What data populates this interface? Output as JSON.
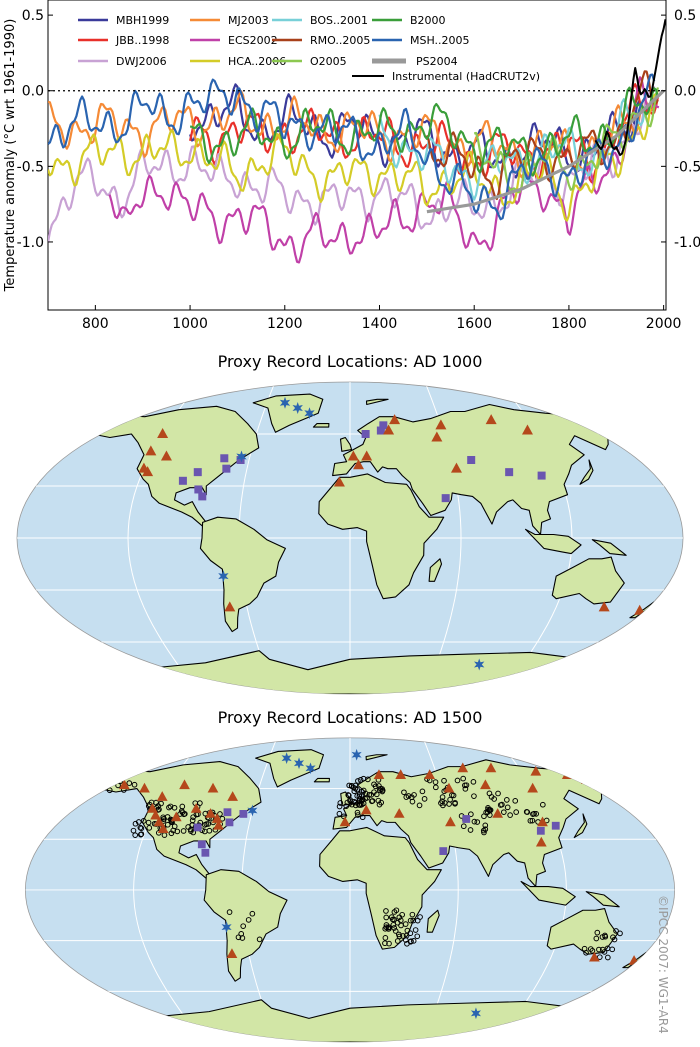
{
  "chart_data": {
    "type": "line",
    "ylabel": "Temperature anomaly (°C wrt 1961-1990)",
    "xlim": [
      700,
      2005
    ],
    "ylim": [
      -1.45,
      0.6
    ],
    "xticks": [
      "800",
      "1000",
      "1200",
      "1400",
      "1600",
      "1800",
      "2000"
    ],
    "yticks_left": [
      "0.5",
      "0.0",
      "-0.5",
      "-1.0"
    ],
    "yticks_right": [
      "0.5",
      "0.0",
      "-0.5",
      "-1.0"
    ],
    "zero_line": "dotted",
    "series": [
      {
        "name": "MBH1999",
        "color": "#3a3a9a",
        "start": 1000,
        "end": 1980,
        "x": [
          1000,
          1050,
          1100,
          1150,
          1200,
          1250,
          1300,
          1350,
          1400,
          1450,
          1500,
          1550,
          1600,
          1650,
          1700,
          1750,
          1800,
          1850,
          1900,
          1950,
          1980
        ],
        "y": [
          -0.15,
          -0.2,
          -0.12,
          -0.25,
          -0.22,
          -0.2,
          -0.3,
          -0.25,
          -0.3,
          -0.35,
          -0.3,
          -0.4,
          -0.42,
          -0.45,
          -0.4,
          -0.35,
          -0.38,
          -0.42,
          -0.3,
          -0.1,
          -0.05
        ]
      },
      {
        "name": "JBB..1998",
        "color": "#e8302a",
        "start": 1000,
        "end": 1991,
        "x": [
          1000,
          1050,
          1100,
          1150,
          1200,
          1250,
          1300,
          1350,
          1400,
          1450,
          1500,
          1550,
          1600,
          1650,
          1700,
          1750,
          1800,
          1850,
          1900,
          1950,
          1991
        ],
        "y": [
          -0.3,
          -0.3,
          -0.25,
          -0.3,
          -0.25,
          -0.3,
          -0.28,
          -0.3,
          -0.32,
          -0.35,
          -0.35,
          -0.4,
          -0.45,
          -0.4,
          -0.42,
          -0.4,
          -0.38,
          -0.45,
          -0.3,
          -0.1,
          -0.05
        ]
      },
      {
        "name": "DWJ2006",
        "color": "#c8a2d4",
        "start": 700,
        "end": 1980,
        "x": [
          700,
          750,
          800,
          850,
          900,
          950,
          1000,
          1050,
          1100,
          1150,
          1200,
          1250,
          1300,
          1350,
          1400,
          1450,
          1500,
          1550,
          1600,
          1650,
          1700,
          1750,
          1800,
          1850,
          1900,
          1950,
          1980
        ],
        "y": [
          -0.9,
          -0.65,
          -0.6,
          -0.7,
          -0.55,
          -0.5,
          -0.45,
          -0.6,
          -0.55,
          -0.65,
          -0.7,
          -0.7,
          -0.75,
          -0.7,
          -0.65,
          -0.75,
          -0.8,
          -0.75,
          -0.8,
          -0.7,
          -0.6,
          -0.55,
          -0.6,
          -0.5,
          -0.4,
          -0.15,
          -0.1
        ]
      },
      {
        "name": "MJ2003",
        "color": "#f58a36",
        "start": 700,
        "end": 1980,
        "x": [
          700,
          800,
          900,
          1000,
          1100,
          1200,
          1300,
          1400,
          1500,
          1600,
          1700,
          1800,
          1850,
          1900,
          1950,
          1980
        ],
        "y": [
          -0.25,
          -0.22,
          -0.25,
          -0.2,
          -0.18,
          -0.22,
          -0.25,
          -0.28,
          -0.3,
          -0.35,
          -0.4,
          -0.4,
          -0.38,
          -0.3,
          -0.12,
          -0.05
        ]
      },
      {
        "name": "ECS2002",
        "color": "#c040a8",
        "start": 830,
        "end": 1990,
        "x": [
          830,
          860,
          900,
          950,
          1000,
          1050,
          1100,
          1150,
          1200,
          1250,
          1300,
          1350,
          1400,
          1450,
          1500,
          1550,
          1600,
          1650,
          1700,
          1750,
          1800,
          1850,
          1900,
          1950,
          1990
        ],
        "y": [
          -0.6,
          -0.95,
          -0.7,
          -0.6,
          -0.8,
          -0.85,
          -0.8,
          -0.9,
          -1.0,
          -0.95,
          -1.02,
          -0.9,
          -0.95,
          -0.85,
          -0.7,
          -0.8,
          -1.0,
          -0.85,
          -0.65,
          -0.6,
          -0.9,
          -0.55,
          -0.45,
          -0.1,
          -0.05
        ]
      },
      {
        "name": "HCA..2006",
        "color": "#d4cc28",
        "start": 700,
        "end": 1990,
        "x": [
          700,
          750,
          800,
          850,
          900,
          950,
          1000,
          1050,
          1100,
          1150,
          1200,
          1250,
          1300,
          1350,
          1400,
          1450,
          1500,
          1550,
          1600,
          1650,
          1700,
          1750,
          1800,
          1850,
          1900,
          1950,
          1990
        ],
        "y": [
          -0.4,
          -0.5,
          -0.45,
          -0.35,
          -0.45,
          -0.4,
          -0.35,
          -0.5,
          -0.55,
          -0.45,
          -0.45,
          -0.5,
          -0.6,
          -0.55,
          -0.5,
          -0.6,
          -0.65,
          -0.55,
          -0.6,
          -0.65,
          -0.6,
          -0.55,
          -0.7,
          -0.6,
          -0.45,
          -0.2,
          -0.1
        ]
      },
      {
        "name": "BOS..2001",
        "color": "#78d0d8",
        "start": 1400,
        "end": 1960,
        "x": [
          1400,
          1450,
          1500,
          1550,
          1600,
          1650,
          1700,
          1750,
          1800,
          1850,
          1900,
          1960
        ],
        "y": [
          -0.3,
          -0.35,
          -0.45,
          -0.5,
          -0.55,
          -0.5,
          -0.45,
          -0.4,
          -0.4,
          -0.45,
          -0.3,
          -0.1
        ]
      },
      {
        "name": "RMO..2005",
        "color": "#a8401a",
        "start": 1500,
        "end": 1990,
        "x": [
          1500,
          1550,
          1600,
          1650,
          1700,
          1750,
          1800,
          1850,
          1900,
          1950,
          1990
        ],
        "y": [
          -0.35,
          -0.45,
          -0.5,
          -0.55,
          -0.45,
          -0.4,
          -0.45,
          -0.4,
          -0.3,
          -0.05,
          -0.05
        ]
      },
      {
        "name": "O2005",
        "color": "#8cc850",
        "start": 1600,
        "end": 1990,
        "x": [
          1600,
          1650,
          1700,
          1750,
          1800,
          1850,
          1900,
          1950,
          1990
        ],
        "y": [
          -0.45,
          -0.5,
          -0.55,
          -0.45,
          -0.5,
          -0.45,
          -0.35,
          -0.1,
          -0.05
        ]
      },
      {
        "name": "B2000",
        "color": "#3a9e3a",
        "start": 1000,
        "end": 1990,
        "x": [
          1000,
          1100,
          1200,
          1300,
          1400,
          1500,
          1600,
          1700,
          1800,
          1850,
          1900,
          1950,
          1990
        ],
        "y": [
          -0.35,
          -0.3,
          -0.3,
          -0.25,
          -0.3,
          -0.2,
          -0.35,
          -0.4,
          -0.35,
          -0.3,
          -0.25,
          -0.1,
          -0.05
        ]
      },
      {
        "name": "MSH..2005",
        "color": "#2a64b0",
        "start": 700,
        "end": 1980,
        "x": [
          700,
          750,
          800,
          850,
          900,
          950,
          1000,
          1050,
          1100,
          1150,
          1200,
          1250,
          1300,
          1350,
          1400,
          1450,
          1500,
          1550,
          1600,
          1650,
          1700,
          1750,
          1800,
          1850,
          1900,
          1950,
          1980
        ],
        "y": [
          -0.3,
          -0.2,
          -0.25,
          -0.2,
          -0.1,
          -0.2,
          -0.05,
          -0.1,
          0.0,
          -0.15,
          -0.25,
          -0.2,
          -0.3,
          -0.3,
          -0.35,
          -0.3,
          -0.4,
          -0.6,
          -0.75,
          -0.7,
          -0.55,
          -0.5,
          -0.55,
          -0.5,
          -0.35,
          -0.1,
          -0.05
        ]
      },
      {
        "name": "PS2004",
        "color": "#999999",
        "start": 1500,
        "end": 2000,
        "x": [
          1500,
          1600,
          1700,
          1800,
          1850,
          1900,
          1950,
          2000
        ],
        "y": [
          -0.8,
          -0.75,
          -0.65,
          -0.5,
          -0.4,
          -0.3,
          -0.15,
          0.0
        ]
      },
      {
        "name": "Instrumental (HadCRUT2v)",
        "color": "#000000",
        "start": 1856,
        "end": 2004,
        "x": [
          1856,
          1870,
          1880,
          1890,
          1900,
          1910,
          1920,
          1930,
          1940,
          1950,
          1960,
          1970,
          1980,
          1990,
          2000,
          2004
        ],
        "y": [
          -0.3,
          -0.35,
          -0.3,
          -0.35,
          -0.3,
          -0.4,
          -0.3,
          -0.15,
          0.05,
          -0.05,
          0.0,
          -0.05,
          0.1,
          0.2,
          0.4,
          0.5
        ]
      }
    ]
  },
  "maps": [
    {
      "title": "Proxy Record Locations:  AD 1000"
    },
    {
      "title": "Proxy Record Locations:  AD 1500"
    }
  ],
  "credit": "©IPCC 2007: WG1-AR4",
  "colors": {
    "ocean": "#c6dff0",
    "land": "#d2e6a6",
    "triangle": "#b5481c",
    "square": "#6a56b0",
    "star": "#2a64b0"
  }
}
